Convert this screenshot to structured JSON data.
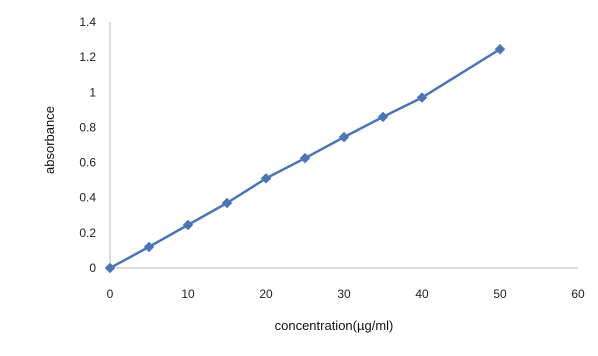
{
  "chart_data": {
    "type": "line",
    "title": "",
    "xlabel": "concentration(µg/ml)",
    "ylabel": "absorbance",
    "xlim": [
      0,
      60
    ],
    "ylim": [
      0,
      1.4
    ],
    "x_ticks": [
      0,
      10,
      20,
      30,
      40,
      50,
      60
    ],
    "y_ticks": [
      0,
      0.2,
      0.4,
      0.6,
      0.8,
      1,
      1.2,
      1.4
    ],
    "x_tick_labels": [
      "0",
      "10",
      "20",
      "30",
      "40",
      "50",
      "60"
    ],
    "y_tick_labels": [
      "0",
      "0.2",
      "0.4",
      "0.6",
      "0.8",
      "1",
      "1.2",
      "1.4"
    ],
    "grid": false,
    "legend": "none",
    "series": [
      {
        "color": "#4a76b8",
        "marker": "diamond",
        "x": [
          0,
          5,
          10,
          15,
          20,
          25,
          30,
          35,
          40,
          50
        ],
        "y": [
          0,
          0.12,
          0.245,
          0.37,
          0.51,
          0.625,
          0.745,
          0.86,
          0.97,
          1.245
        ]
      }
    ]
  }
}
